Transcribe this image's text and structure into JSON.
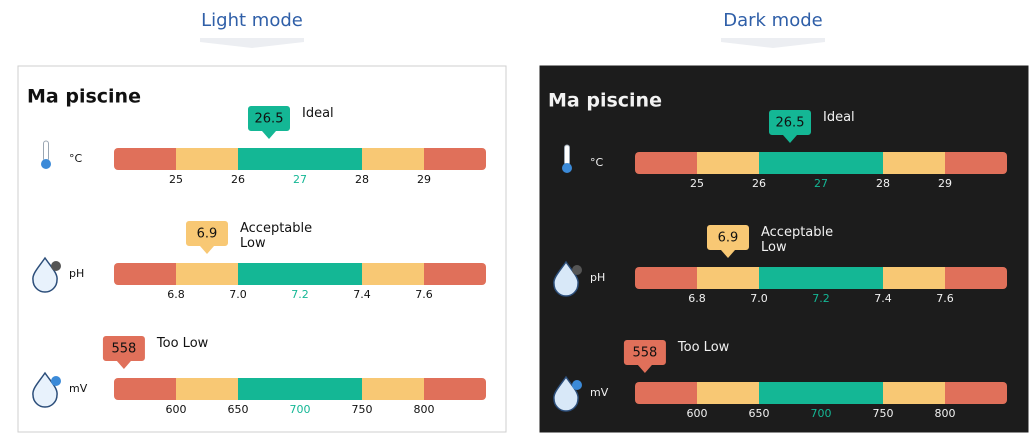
{
  "panels": [
    {
      "heading": "Light mode",
      "theme": "light",
      "title": "Ma piscine",
      "sensors": [
        {
          "unit": "°C",
          "value": 26.5,
          "state": "Ideal",
          "ticks": [
            25,
            26,
            27,
            28,
            29
          ]
        },
        {
          "unit": "pH",
          "value": 6.9,
          "state": "Acceptable Low",
          "ticks": [
            6.8,
            {
              "value": 7,
              "label": "7.0"
            },
            7.2,
            7.4,
            7.6
          ]
        },
        {
          "unit": "mV",
          "value": 558,
          "state": "Too Low",
          "ticks": [
            600,
            650,
            700,
            750,
            800
          ]
        }
      ]
    },
    {
      "heading": "Dark mode",
      "theme": "dark",
      "title": "Ma piscine",
      "sensors": [
        {
          "unit": "°C",
          "value": 26.5,
          "state": "Ideal",
          "ticks": [
            25,
            26,
            27,
            28,
            29
          ]
        },
        {
          "unit": "pH",
          "value": 6.9,
          "state": "Acceptable Low",
          "ticks": [
            6.8,
            {
              "value": 7,
              "label": "7.0"
            },
            7.2,
            7.4,
            7.6
          ]
        },
        {
          "unit": "mV",
          "value": 558,
          "state": "Too Low",
          "ticks": [
            600,
            650,
            700,
            750,
            800
          ]
        }
      ]
    }
  ]
}
